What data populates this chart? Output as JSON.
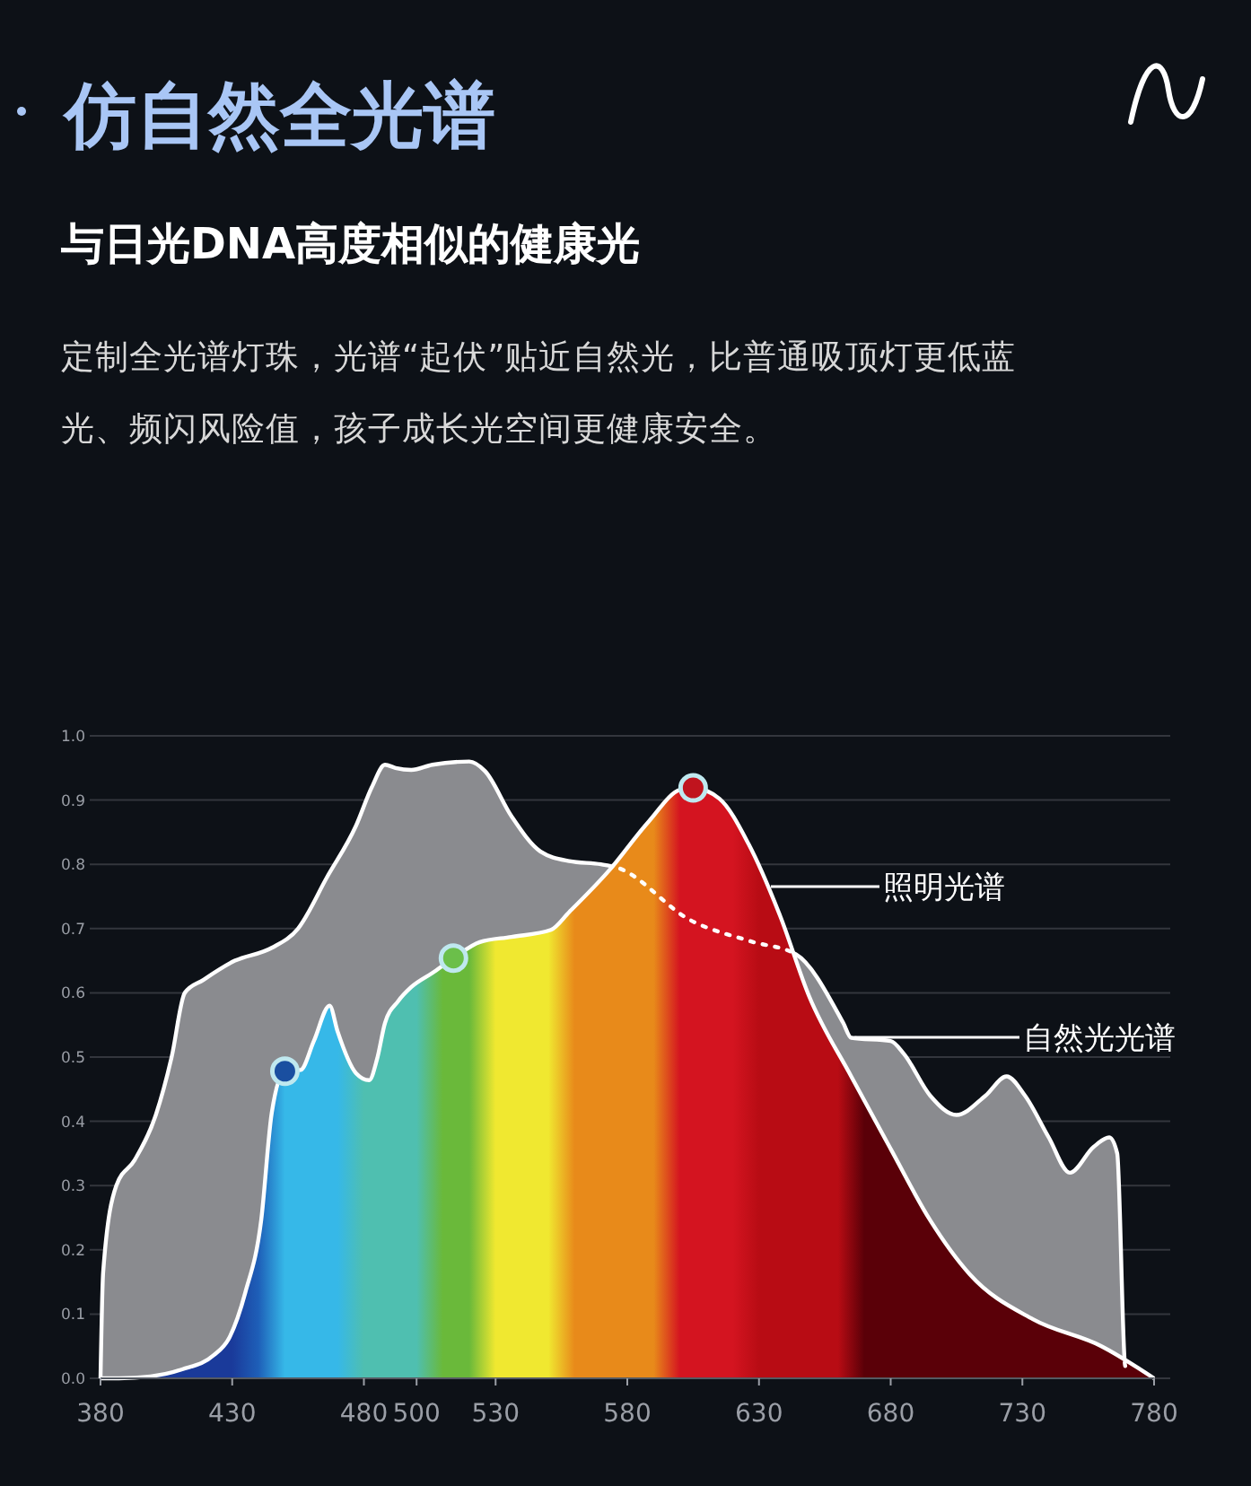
{
  "chart_data": {
    "type": "area",
    "title": "仿自然全光谱",
    "subtitle": "与日光DNA高度相似的健康光",
    "annotations": [
      "定制全光谱灯珠，光谱“起伏”贴近自然光，比普通吸顶灯更低蓝光、频闪风险值，孩子成长光空间更健康安全。"
    ],
    "xlim": [
      380,
      780
    ],
    "xticks": [
      380,
      430,
      480,
      500,
      530,
      580,
      630,
      680,
      730,
      780
    ],
    "ylim": [
      0,
      1
    ],
    "yticks": [
      {
        "value": 0,
        "label": "0.0"
      },
      {
        "value": 0.1,
        "label": "0.1"
      },
      {
        "value": 0.2,
        "label": "0.2"
      },
      {
        "value": 0.3,
        "label": "0.3"
      },
      {
        "value": 0.4,
        "label": "0.4"
      },
      {
        "value": 0.5,
        "label": "0.5"
      },
      {
        "value": 0.6,
        "label": "0.6"
      },
      {
        "value": 0.7,
        "label": "0.7"
      },
      {
        "value": 0.8,
        "label": "0.8"
      },
      {
        "value": 0.9,
        "label": "0.9"
      },
      {
        "value": 1,
        "label": "1.0"
      }
    ],
    "grid": "y",
    "legend": "right",
    "series": [
      {
        "name": "自然光光谱",
        "color": "#8a8b8f",
        "x": [
          380,
          381,
          386,
          393,
          401,
          407,
          412,
          419,
          431,
          445,
          455,
          466,
          477,
          483,
          488,
          492,
          498,
          506,
          520,
          526,
          536,
          547,
          558,
          570,
          576,
          604,
          627,
          644,
          662,
          665,
          680,
          685,
          695,
          705,
          716,
          724,
          731,
          740,
          748,
          757,
          763,
          766,
          769,
          770
        ],
        "values": [
          0,
          0.165,
          0.3,
          0.34,
          0.41,
          0.5,
          0.6,
          0.62,
          0.65,
          0.67,
          0.7,
          0.78,
          0.86,
          0.92,
          0.955,
          0.95,
          0.947,
          0.955,
          0.96,
          0.945,
          0.875,
          0.82,
          0.805,
          0.8,
          0.795,
          0.713,
          0.68,
          0.66,
          0.553,
          0.53,
          0.525,
          0.505,
          0.44,
          0.41,
          0.44,
          0.47,
          0.44,
          0.375,
          0.32,
          0.36,
          0.375,
          0.35,
          0.02,
          0.01
        ]
      },
      {
        "name": "照明光谱",
        "color": "#c8141e",
        "x": [
          380,
          387,
          399,
          411,
          423,
          429,
          435,
          441,
          445,
          450,
          456,
          461,
          467,
          470,
          477,
          482,
          485,
          488,
          493,
          498,
          506,
          514,
          524,
          536,
          551,
          558,
          573,
          588,
          600,
          605,
          615,
          626,
          638,
          649,
          665,
          680,
          695,
          710,
          734,
          760,
          780
        ],
        "values": [
          0,
          0,
          0.003,
          0.014,
          0.036,
          0.064,
          0.134,
          0.246,
          0.413,
          0.478,
          0.48,
          0.525,
          0.58,
          0.54,
          0.475,
          0.464,
          0.497,
          0.553,
          0.587,
          0.609,
          0.631,
          0.654,
          0.679,
          0.687,
          0.698,
          0.726,
          0.79,
          0.866,
          0.916,
          0.919,
          0.902,
          0.832,
          0.72,
          0.595,
          0.47,
          0.357,
          0.246,
          0.162,
          0.092,
          0.05,
          0
        ]
      },
      {
        "type": "scatter",
        "x": [
          450,
          514,
          605
        ],
        "values": [
          0.478,
          0.654,
          0.919
        ],
        "colors": [
          "#1a4fa0",
          "#6bbf4a",
          "#c0141e"
        ]
      }
    ]
  }
}
